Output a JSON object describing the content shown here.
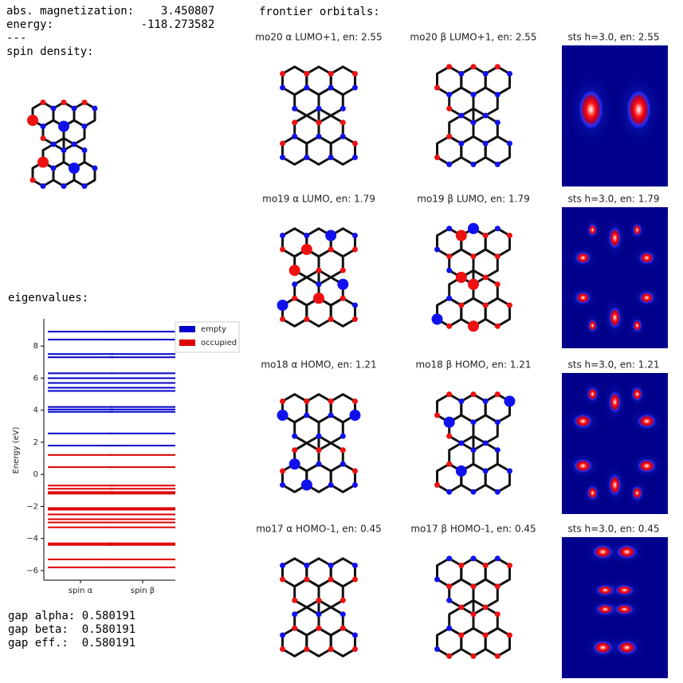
{
  "summary": {
    "lines": [
      "abs. magnetization:    3.450807",
      "energy:             -118.273582",
      "---",
      "spin density:"
    ]
  },
  "eigenvalues_label": "eigenvalues:",
  "chart_data": {
    "type": "levels",
    "categories": [
      "spin α",
      "spin β"
    ],
    "ylabel": "Energy (eV)",
    "ylim": [
      -6.6,
      9.7
    ],
    "yticks": [
      {
        "value": -6,
        "label": "−6"
      },
      {
        "value": -4,
        "label": "−4"
      },
      {
        "value": -2,
        "label": "−2"
      },
      0,
      2,
      4,
      6,
      8
    ],
    "legend": "upper right",
    "series": [
      {
        "name": "empty",
        "color": "#0000cc",
        "values": [
          [
            1.79,
            2.55,
            3.9,
            4.05,
            4.2,
            5.2,
            5.4,
            5.7,
            6.0,
            6.3,
            7.3,
            7.5,
            8.4,
            8.9
          ],
          [
            1.79,
            2.55,
            3.9,
            4.05,
            4.2,
            5.2,
            5.4,
            5.7,
            6.0,
            6.3,
            7.3,
            7.5,
            8.4,
            8.9
          ]
        ]
      },
      {
        "name": "occupied",
        "color": "#dd0000",
        "values": [
          [
            1.21,
            0.45,
            -0.7,
            -0.9,
            -1.1,
            -1.2,
            -2.1,
            -2.2,
            -2.5,
            -2.8,
            -3.0,
            -3.3,
            -4.3,
            -4.4,
            -5.3,
            -5.8
          ],
          [
            1.21,
            0.45,
            -0.7,
            -0.9,
            -1.1,
            -1.2,
            -2.1,
            -2.2,
            -2.5,
            -2.8,
            -3.0,
            -3.3,
            -4.3,
            -4.4,
            -5.3,
            -5.8
          ]
        ]
      }
    ]
  },
  "gaps": [
    "gap alpha: 0.580191",
    "gap beta:  0.580191",
    "gap eff.:  0.580191"
  ],
  "orbitals": {
    "title": "frontier orbitals:",
    "panels": [
      [
        "mo20 α LUMO+1, en: 2.55",
        "mo20 β LUMO+1, en: 2.55",
        "sts h=3.0, en: 2.55"
      ],
      [
        "mo19 α LUMO, en: 1.79",
        "mo19 β LUMO, en: 1.79",
        "sts h=3.0, en: 1.79"
      ],
      [
        "mo18 α HOMO, en: 1.21",
        "mo18 β HOMO, en: 1.21",
        "sts h=3.0, en: 1.21"
      ],
      [
        "mo17 α HOMO-1, en: 0.45",
        "mo17 β HOMO-1, en: 0.45",
        "sts h=3.0, en: 0.45"
      ]
    ]
  }
}
